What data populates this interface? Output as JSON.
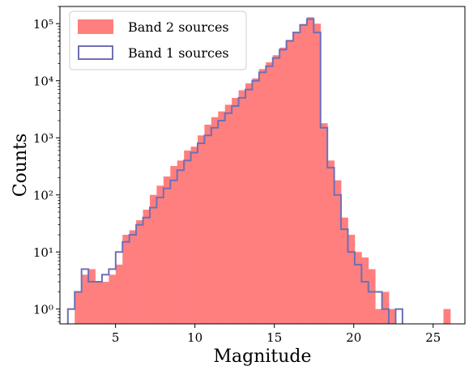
{
  "chart_data": {
    "type": "histogram",
    "xlabel": "Magnitude",
    "ylabel": "Counts",
    "yscale": "log",
    "xlim": [
      1.5,
      27
    ],
    "ylim": [
      0.55,
      200000
    ],
    "x_ticks": [
      5,
      10,
      15,
      20,
      25
    ],
    "x_tick_labels": [
      "5",
      "10",
      "15",
      "20",
      "25"
    ],
    "y_ticks": [
      1,
      10,
      100,
      1000,
      10000,
      100000
    ],
    "y_tick_labels": [
      "10⁰",
      "10¹",
      "10²",
      "10³",
      "10⁴",
      "10⁵"
    ],
    "legend_position": "top-left",
    "bin_edges": [
      2.0,
      2.43,
      2.86,
      3.29,
      3.72,
      4.15,
      4.58,
      5.01,
      5.44,
      5.87,
      6.3,
      6.73,
      7.16,
      7.59,
      8.02,
      8.45,
      8.88,
      9.31,
      9.74,
      10.17,
      10.6,
      11.03,
      11.46,
      11.89,
      12.32,
      12.75,
      13.18,
      13.61,
      14.04,
      14.47,
      14.9,
      15.33,
      15.76,
      16.19,
      16.62,
      17.05,
      17.48,
      17.91,
      18.34,
      18.77,
      19.2,
      19.63,
      20.06,
      20.49,
      20.92,
      21.35,
      21.78,
      22.21,
      22.64,
      23.07,
      23.5,
      23.93,
      24.36,
      24.79,
      25.22,
      25.65,
      26.08
    ],
    "series": [
      {
        "name": "Band 2 sources",
        "style": "filled",
        "color": "#ff7f7f",
        "values": [
          0,
          2,
          4,
          5,
          3,
          3,
          4,
          6,
          20,
          24,
          36,
          55,
          100,
          145,
          210,
          320,
          400,
          600,
          700,
          1100,
          1700,
          2300,
          2900,
          3800,
          5000,
          6800,
          9000,
          11000,
          16000,
          21000,
          28000,
          38000,
          52000,
          72000,
          98000,
          130000,
          100000,
          1800,
          400,
          180,
          40,
          20,
          10,
          8,
          5,
          1,
          2,
          1,
          0,
          0,
          0,
          0,
          0,
          0,
          0,
          1
        ]
      },
      {
        "name": "Band 1 sources",
        "style": "step",
        "color": "#6f6fb6",
        "values": [
          1,
          2,
          5,
          3,
          3,
          4,
          5,
          10,
          15,
          20,
          30,
          40,
          60,
          90,
          130,
          180,
          270,
          400,
          550,
          800,
          1100,
          1500,
          2000,
          2700,
          3600,
          5000,
          7000,
          10000,
          14000,
          18000,
          25000,
          35000,
          50000,
          70000,
          95000,
          120000,
          70000,
          1500,
          300,
          100,
          25,
          10,
          6,
          3,
          2,
          2,
          1,
          0,
          1,
          0,
          0,
          0,
          0,
          0,
          0,
          0
        ]
      }
    ]
  }
}
